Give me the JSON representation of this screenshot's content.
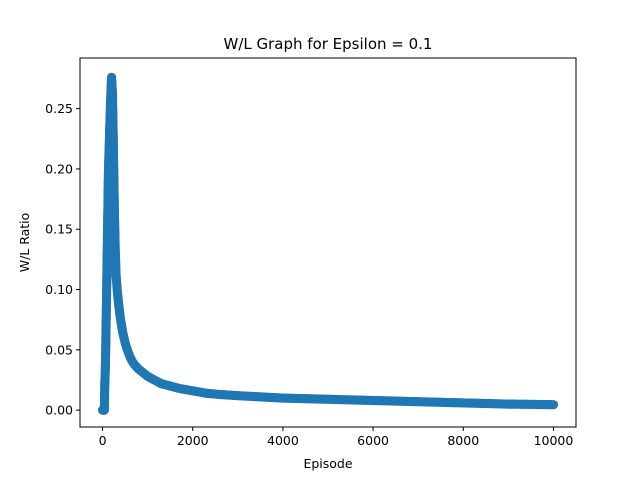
{
  "chart_data": {
    "type": "scatter",
    "title": "W/L Graph for Epsilon = 0.1",
    "xlabel": "Episode",
    "ylabel": "W/L Ratio",
    "xlim": [
      -500,
      10500
    ],
    "ylim": [
      -0.014,
      0.292
    ],
    "xticks": [
      0,
      2000,
      4000,
      6000,
      8000,
      10000
    ],
    "xtick_labels": [
      "0",
      "2000",
      "4000",
      "6000",
      "8000",
      "10000"
    ],
    "yticks": [
      0.0,
      0.05,
      0.1,
      0.15,
      0.2,
      0.25
    ],
    "ytick_labels": [
      "0.00",
      "0.05",
      "0.10",
      "0.15",
      "0.20",
      "0.25"
    ],
    "grid": false,
    "marker_color": "#1f77b4",
    "series": [
      {
        "x": [
          0,
          10,
          20,
          30,
          40,
          50,
          55,
          60,
          65,
          70,
          75,
          80,
          85,
          90,
          95,
          100,
          105,
          110,
          115,
          120,
          125,
          130,
          140,
          150,
          160,
          170,
          180,
          190,
          200,
          220,
          240,
          260,
          280,
          300,
          325,
          350,
          375,
          400,
          450,
          500,
          550,
          600,
          650,
          700,
          750,
          800,
          900,
          1000,
          1100,
          1200,
          1300,
          1400,
          1500,
          1700,
          2000,
          2300,
          2600,
          3000,
          3500,
          4000,
          4500,
          5000,
          5500,
          6000,
          6500,
          7000,
          7500,
          8000,
          8500,
          9000,
          9500,
          10000
        ],
        "y": [
          0.0,
          0.0,
          0.0,
          0.0,
          0.0,
          0.022,
          0.027,
          0.032,
          0.04,
          0.05,
          0.062,
          0.074,
          0.086,
          0.098,
          0.11,
          0.123,
          0.135,
          0.147,
          0.16,
          0.172,
          0.185,
          0.197,
          0.21,
          0.222,
          0.235,
          0.247,
          0.258,
          0.268,
          0.276,
          0.262,
          0.22,
          0.17,
          0.135,
          0.112,
          0.1,
          0.09,
          0.082,
          0.075,
          0.064,
          0.056,
          0.05,
          0.045,
          0.041,
          0.038,
          0.036,
          0.034,
          0.031,
          0.028,
          0.026,
          0.024,
          0.022,
          0.021,
          0.02,
          0.018,
          0.016,
          0.014,
          0.013,
          0.012,
          0.011,
          0.01,
          0.0095,
          0.009,
          0.0085,
          0.008,
          0.0075,
          0.007,
          0.0065,
          0.006,
          0.0055,
          0.005,
          0.0048,
          0.0045
        ]
      }
    ]
  }
}
